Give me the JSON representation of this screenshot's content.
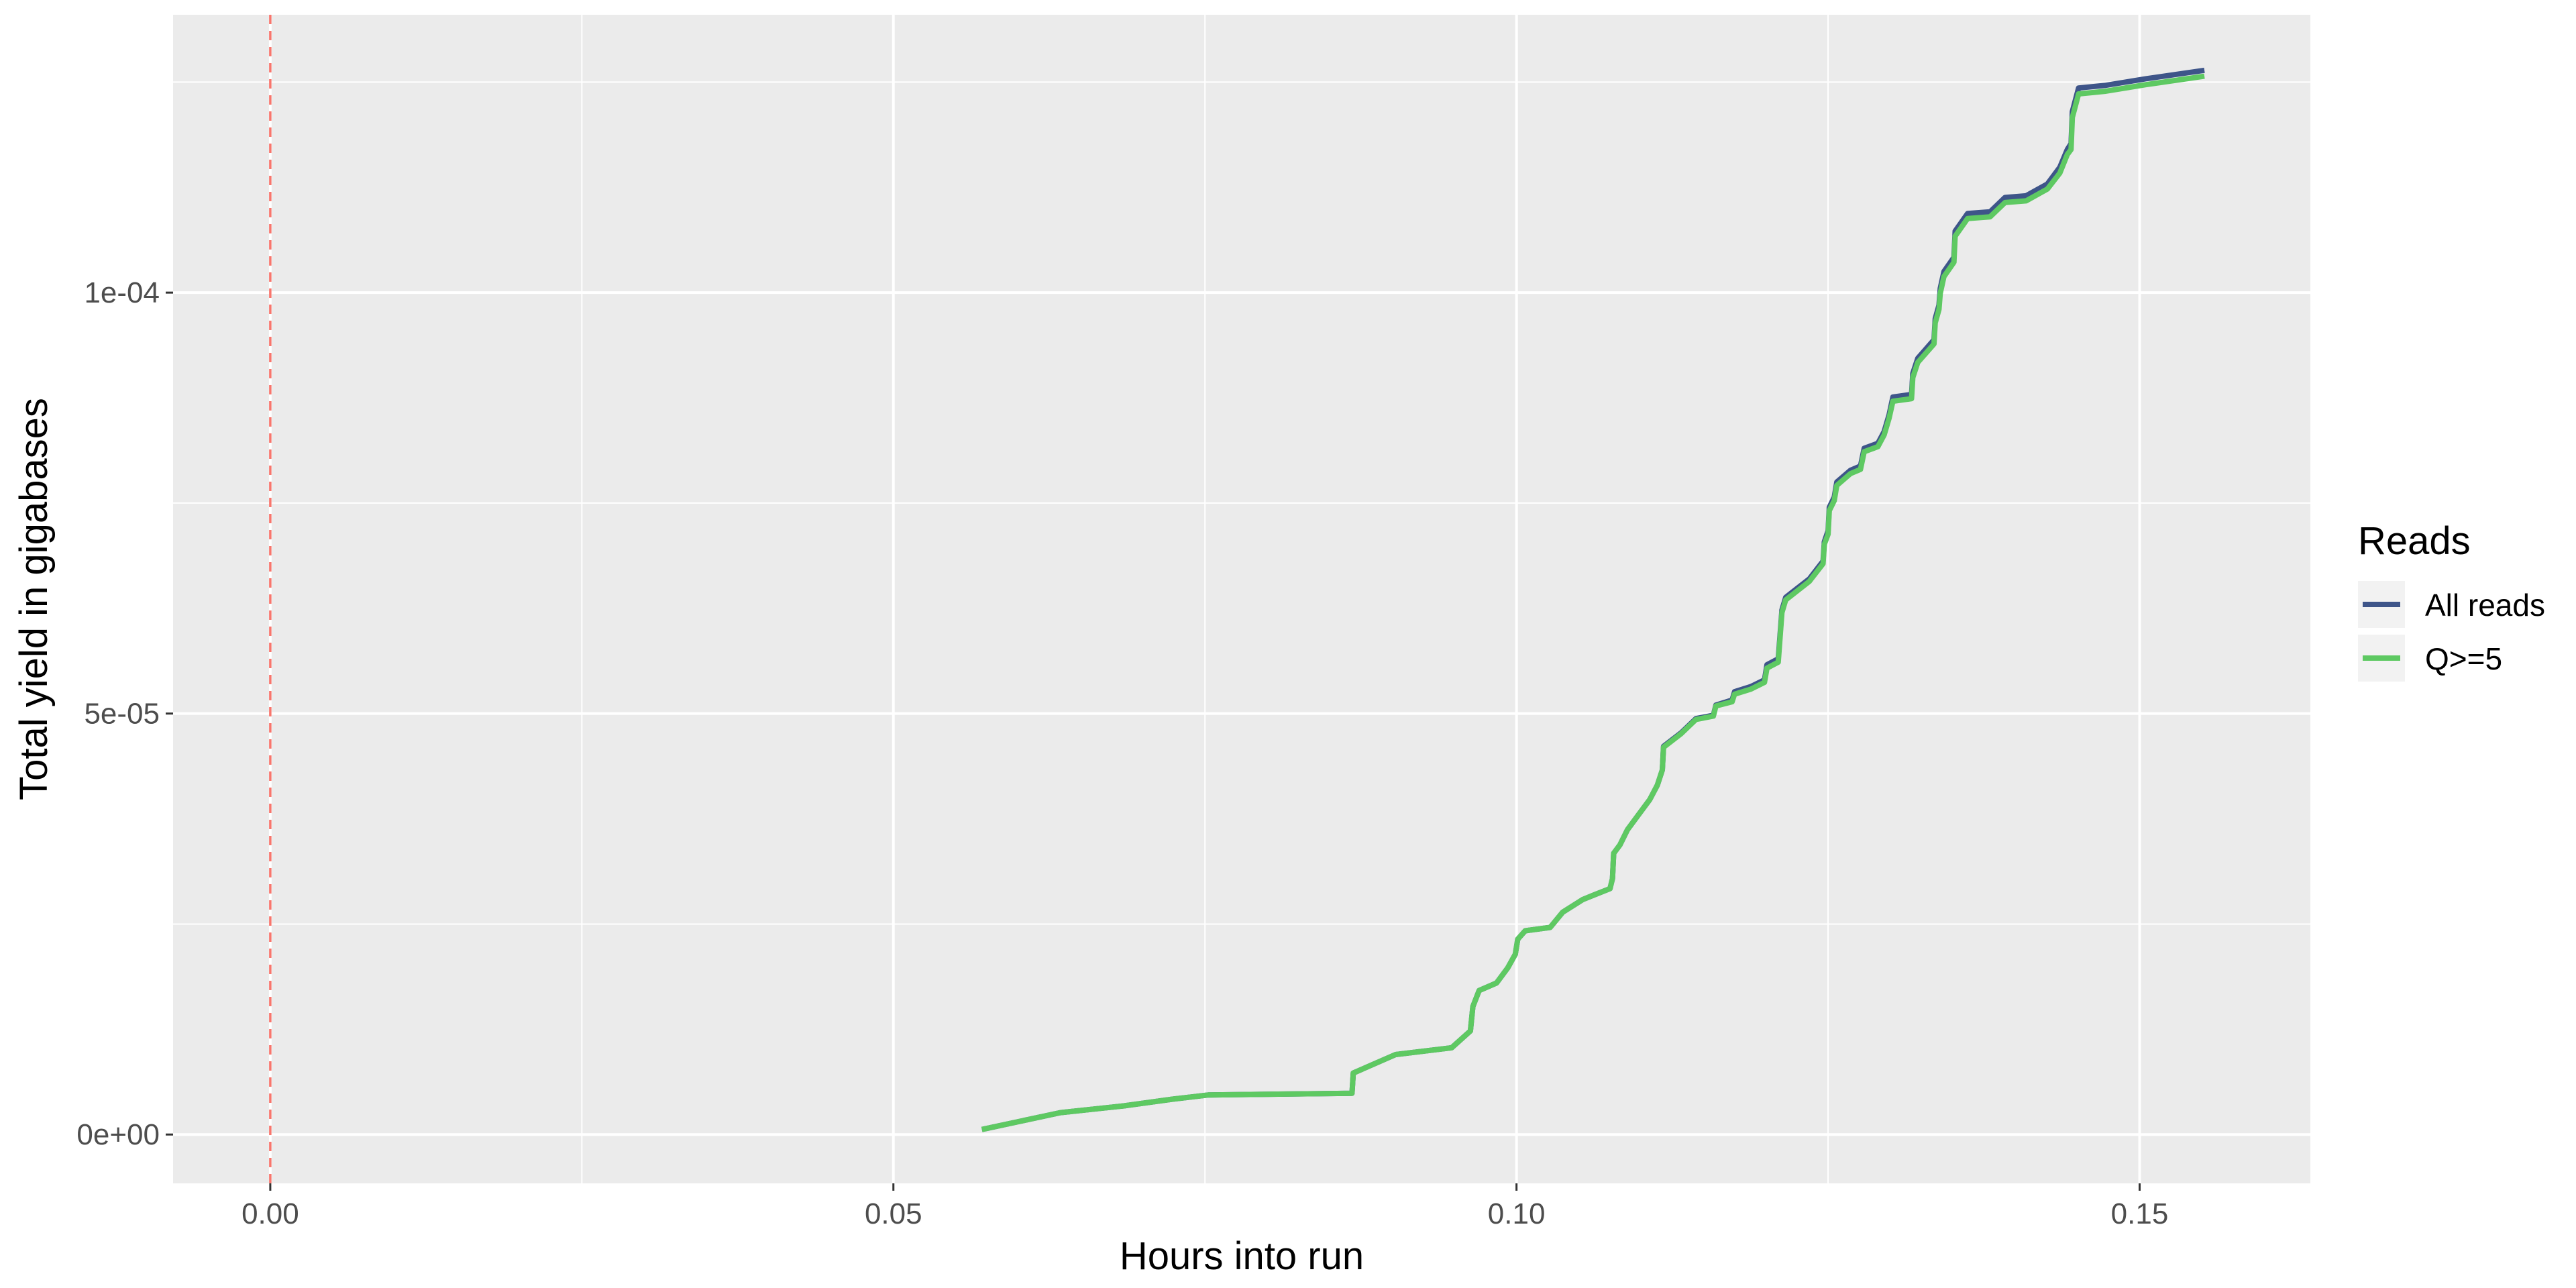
{
  "chart_data": {
    "type": "line",
    "xlabel": "Hours into run",
    "ylabel": "Total yield in gigabases",
    "xlim": [
      -0.0078,
      0.1637
    ],
    "ylim": [
      -5.8e-06,
      0.000133
    ],
    "x_ticks": [
      0.0,
      0.05,
      0.1,
      0.15
    ],
    "x_tick_labels": [
      "0.00",
      "0.05",
      "0.10",
      "0.15"
    ],
    "x_minor_ticks": [
      0.025,
      0.075,
      0.125
    ],
    "y_ticks": [
      0,
      5e-05,
      0.0001
    ],
    "y_tick_labels": [
      "0e+00",
      "5e-05",
      "1e-04"
    ],
    "y_minor_ticks": [
      2.5e-05,
      7.5e-05,
      0.000125
    ],
    "grid": true,
    "vline": {
      "x": 0,
      "color": "#f8766d",
      "style": "dashed"
    },
    "legend": {
      "title": "Reads",
      "position": "right",
      "entries": [
        "All reads",
        "Q>=5"
      ]
    },
    "series": [
      {
        "name": "All reads",
        "color": "#3e5589",
        "points": [
          [
            0.0571,
            6e-07
          ],
          [
            0.0634,
            2.6e-06
          ],
          [
            0.0685,
            3.4e-06
          ],
          [
            0.0724,
            4.2e-06
          ],
          [
            0.0753,
            4.7e-06
          ],
          [
            0.0868,
            4.9e-06
          ],
          [
            0.0869,
            7.3e-06
          ],
          [
            0.0903,
            9.5e-06
          ],
          [
            0.0948,
            1.03e-05
          ],
          [
            0.0963,
            1.23e-05
          ],
          [
            0.0965,
            1.52e-05
          ],
          [
            0.097,
            1.71e-05
          ],
          [
            0.0984,
            1.8e-05
          ],
          [
            0.0993,
            1.98e-05
          ],
          [
            0.0999,
            2.14e-05
          ],
          [
            0.1001,
            2.32e-05
          ],
          [
            0.1007,
            2.42e-05
          ],
          [
            0.1027,
            2.46e-05
          ],
          [
            0.1037,
            2.64e-05
          ],
          [
            0.1053,
            2.79e-05
          ],
          [
            0.1063,
            2.85e-05
          ],
          [
            0.1075,
            2.92e-05
          ],
          [
            0.1077,
            3.04e-05
          ],
          [
            0.1078,
            3.34e-05
          ],
          [
            0.1083,
            3.44e-05
          ],
          [
            0.1089,
            3.62e-05
          ],
          [
            0.1098,
            3.8e-05
          ],
          [
            0.1107,
            3.98e-05
          ],
          [
            0.1113,
            4.15e-05
          ],
          [
            0.1117,
            4.33e-05
          ],
          [
            0.1118,
            4.61e-05
          ],
          [
            0.1132,
            4.77e-05
          ],
          [
            0.1144,
            4.94e-05
          ],
          [
            0.1158,
            4.98e-05
          ],
          [
            0.116,
            5.1e-05
          ],
          [
            0.1173,
            5.16e-05
          ],
          [
            0.1175,
            5.26e-05
          ],
          [
            0.1188,
            5.32e-05
          ],
          [
            0.1199,
            5.4e-05
          ],
          [
            0.1201,
            5.58e-05
          ],
          [
            0.121,
            5.65e-05
          ],
          [
            0.1213,
            6.23e-05
          ],
          [
            0.1216,
            6.38e-05
          ],
          [
            0.1235,
            6.6e-05
          ],
          [
            0.1246,
            6.81e-05
          ],
          [
            0.1247,
            7.04e-05
          ],
          [
            0.125,
            7.17e-05
          ],
          [
            0.1251,
            7.45e-05
          ],
          [
            0.1255,
            7.57e-05
          ],
          [
            0.1257,
            7.75e-05
          ],
          [
            0.1268,
            7.89e-05
          ],
          [
            0.1276,
            7.94e-05
          ],
          [
            0.1279,
            8.15e-05
          ],
          [
            0.129,
            8.21e-05
          ],
          [
            0.1295,
            8.35e-05
          ],
          [
            0.1299,
            8.55e-05
          ],
          [
            0.1302,
            8.76e-05
          ],
          [
            0.1317,
            8.79e-05
          ],
          [
            0.1318,
            9.04e-05
          ],
          [
            0.1322,
            9.22e-05
          ],
          [
            0.1335,
            9.44e-05
          ],
          [
            0.1336,
            9.69e-05
          ],
          [
            0.1339,
            9.85e-05
          ],
          [
            0.134,
            0.0001005
          ],
          [
            0.1343,
            0.0001025
          ],
          [
            0.1351,
            0.0001042
          ],
          [
            0.1352,
            0.0001073
          ],
          [
            0.1362,
            0.0001094
          ],
          [
            0.138,
            0.0001096
          ],
          [
            0.1392,
            0.0001113
          ],
          [
            0.1409,
            0.0001115
          ],
          [
            0.1426,
            0.0001129
          ],
          [
            0.1436,
            0.0001149
          ],
          [
            0.1442,
            0.000117
          ],
          [
            0.1445,
            0.0001177
          ],
          [
            0.1446,
            0.0001215
          ],
          [
            0.1451,
            0.0001243
          ],
          [
            0.1472,
            0.0001246
          ],
          [
            0.1505,
            0.0001254
          ],
          [
            0.1552,
            0.0001264
          ]
        ]
      },
      {
        "name": "Q>=5",
        "color": "#5ec962",
        "points": [
          [
            0.0571,
            6e-07
          ],
          [
            0.0634,
            2.6e-06
          ],
          [
            0.0685,
            3.4e-06
          ],
          [
            0.0724,
            4.2e-06
          ],
          [
            0.0753,
            4.7e-06
          ],
          [
            0.0868,
            4.9e-06
          ],
          [
            0.0869,
            7.3e-06
          ],
          [
            0.0903,
            9.5e-06
          ],
          [
            0.0948,
            1.03e-05
          ],
          [
            0.0963,
            1.23e-05
          ],
          [
            0.0965,
            1.52e-05
          ],
          [
            0.097,
            1.71e-05
          ],
          [
            0.0984,
            1.8e-05
          ],
          [
            0.0993,
            1.98e-05
          ],
          [
            0.0999,
            2.14e-05
          ],
          [
            0.1001,
            2.32e-05
          ],
          [
            0.1007,
            2.42e-05
          ],
          [
            0.1027,
            2.46e-05
          ],
          [
            0.1037,
            2.64e-05
          ],
          [
            0.1053,
            2.79e-05
          ],
          [
            0.1063,
            2.85e-05
          ],
          [
            0.1075,
            2.92e-05
          ],
          [
            0.1077,
            3.04e-05
          ],
          [
            0.1078,
            3.34e-05
          ],
          [
            0.1083,
            3.44e-05
          ],
          [
            0.1089,
            3.62e-05
          ],
          [
            0.1098,
            3.8e-05
          ],
          [
            0.1107,
            3.98e-05
          ],
          [
            0.1113,
            4.15e-05
          ],
          [
            0.1117,
            4.33e-05
          ],
          [
            0.1118,
            4.6e-05
          ],
          [
            0.1132,
            4.76e-05
          ],
          [
            0.1144,
            4.93e-05
          ],
          [
            0.1158,
            4.97e-05
          ],
          [
            0.116,
            5.09e-05
          ],
          [
            0.1173,
            5.14e-05
          ],
          [
            0.1175,
            5.23e-05
          ],
          [
            0.1188,
            5.29e-05
          ],
          [
            0.1199,
            5.37e-05
          ],
          [
            0.1201,
            5.54e-05
          ],
          [
            0.121,
            5.61e-05
          ],
          [
            0.1213,
            6.2e-05
          ],
          [
            0.1216,
            6.35e-05
          ],
          [
            0.1235,
            6.57e-05
          ],
          [
            0.1246,
            6.78e-05
          ],
          [
            0.1247,
            7.01e-05
          ],
          [
            0.125,
            7.13e-05
          ],
          [
            0.1251,
            7.41e-05
          ],
          [
            0.1255,
            7.53e-05
          ],
          [
            0.1257,
            7.71e-05
          ],
          [
            0.1268,
            7.85e-05
          ],
          [
            0.1276,
            7.9e-05
          ],
          [
            0.1279,
            8.11e-05
          ],
          [
            0.129,
            8.17e-05
          ],
          [
            0.1295,
            8.31e-05
          ],
          [
            0.1299,
            8.51e-05
          ],
          [
            0.1302,
            8.71e-05
          ],
          [
            0.1317,
            8.74e-05
          ],
          [
            0.1318,
            8.99e-05
          ],
          [
            0.1322,
            9.17e-05
          ],
          [
            0.1335,
            9.39e-05
          ],
          [
            0.1336,
            9.64e-05
          ],
          [
            0.1339,
            9.8e-05
          ],
          [
            0.134,
            9.99e-05
          ],
          [
            0.1343,
            0.0001019
          ],
          [
            0.1351,
            0.0001036
          ],
          [
            0.1352,
            0.0001067
          ],
          [
            0.1362,
            0.0001088
          ],
          [
            0.138,
            0.000109
          ],
          [
            0.1392,
            0.0001107
          ],
          [
            0.1409,
            0.0001109
          ],
          [
            0.1426,
            0.0001123
          ],
          [
            0.1436,
            0.0001142
          ],
          [
            0.1442,
            0.0001164
          ],
          [
            0.1445,
            0.000117
          ],
          [
            0.1446,
            0.0001208
          ],
          [
            0.1451,
            0.0001236
          ],
          [
            0.1472,
            0.0001239
          ],
          [
            0.1505,
            0.0001247
          ],
          [
            0.1552,
            0.0001257
          ]
        ]
      }
    ]
  }
}
